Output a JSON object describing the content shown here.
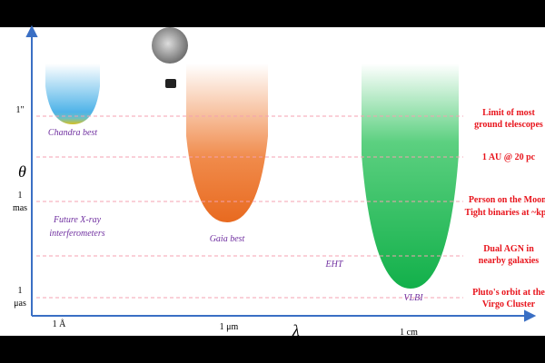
{
  "axes": {
    "y_label": "θ",
    "x_label": "λ",
    "y_ticks": [
      [
        "1\""
      ],
      [
        "1",
        "mas"
      ],
      [
        "1",
        "μas"
      ]
    ],
    "x_ticks": [
      "1 Å",
      "1  μm",
      "1 cm"
    ]
  },
  "regions": [
    [
      "Chandra best"
    ],
    [
      "Future X-ray",
      "interferometers"
    ],
    [
      "Gaia best"
    ],
    [
      "EHT"
    ],
    [
      "VLBI"
    ]
  ],
  "limits": [
    [
      "Limit of most",
      "ground telescopes"
    ],
    [
      "1 AU @ 20 pc"
    ],
    [
      "Person on the Moon.",
      "Tight binaries at ~kpc."
    ],
    [
      "Dual AGN in",
      "nearby galaxies"
    ],
    [
      "Pluto's orbit at the",
      "Virgo Cluster"
    ]
  ]
}
